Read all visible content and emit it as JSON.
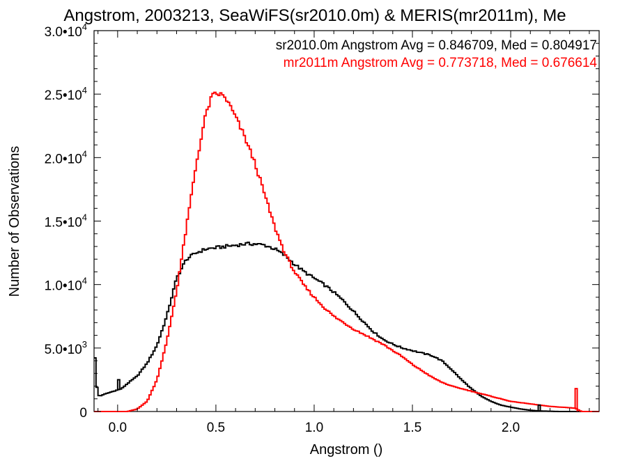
{
  "chart_data": {
    "type": "line",
    "title": "Angstrom, 2003213, SeaWiFS(sr2010.0m) & MERIS(mr2011m), Me",
    "xlabel": "Angstrom ()",
    "ylabel": "Number of Observations",
    "xlim": [
      -0.12,
      2.45
    ],
    "ylim": [
      0,
      30000
    ],
    "x_ticks": [
      {
        "value": 0.0,
        "label": "0.0"
      },
      {
        "value": 0.5,
        "label": "0.5"
      },
      {
        "value": 1.0,
        "label": "1.0"
      },
      {
        "value": 1.5,
        "label": "1.5"
      },
      {
        "value": 2.0,
        "label": "2.0"
      }
    ],
    "y_ticks": [
      {
        "value": 0,
        "mant": "0",
        "exp": ""
      },
      {
        "value": 5000,
        "mant": "5.0•10",
        "exp": "3"
      },
      {
        "value": 10000,
        "mant": "1.0•10",
        "exp": "4"
      },
      {
        "value": 15000,
        "mant": "1.5•10",
        "exp": "4"
      },
      {
        "value": 20000,
        "mant": "2.0•10",
        "exp": "4"
      },
      {
        "value": 25000,
        "mant": "2.5•10",
        "exp": "4"
      },
      {
        "value": 30000,
        "mant": "3.0•10",
        "exp": "4"
      }
    ],
    "grid": false,
    "legend_position": "top-right",
    "series": [
      {
        "name": "sr2010.0m Angstrom Avg = 0.846709, Med = 0.804917",
        "color": "#000000",
        "x": [
          -0.12,
          -0.11,
          -0.1,
          -0.09,
          -0.08,
          -0.06,
          -0.04,
          -0.02,
          0.0,
          0.02,
          0.05,
          0.1,
          0.15,
          0.2,
          0.25,
          0.3,
          0.35,
          0.4,
          0.45,
          0.5,
          0.55,
          0.6,
          0.65,
          0.7,
          0.75,
          0.8,
          0.85,
          0.9,
          0.95,
          1.0,
          1.05,
          1.1,
          1.15,
          1.2,
          1.25,
          1.3,
          1.35,
          1.4,
          1.45,
          1.5,
          1.55,
          1.6,
          1.65,
          1.7,
          1.75,
          1.8,
          1.85,
          1.9,
          1.95,
          2.0,
          2.05,
          2.1,
          2.14,
          2.2,
          2.25
        ],
        "y": [
          6000,
          2500,
          1300,
          1200,
          1300,
          1400,
          1500,
          1600,
          1700,
          1800,
          2200,
          2800,
          3800,
          5200,
          7500,
          10500,
          12000,
          12500,
          12800,
          12900,
          13000,
          13100,
          13200,
          13200,
          13100,
          12800,
          12300,
          11600,
          11000,
          10500,
          10000,
          9400,
          8700,
          7900,
          7100,
          6300,
          5700,
          5300,
          5000,
          4800,
          4600,
          4400,
          4000,
          3300,
          2500,
          1800,
          1200,
          800,
          500,
          350,
          200,
          100,
          50,
          20,
          0
        ]
      },
      {
        "name": "mr2011m Angstrom Avg = 0.773718, Med = 0.676614",
        "color": "#ff0000",
        "x": [
          -0.12,
          0.05,
          0.1,
          0.15,
          0.2,
          0.25,
          0.3,
          0.35,
          0.4,
          0.45,
          0.48,
          0.5,
          0.52,
          0.55,
          0.6,
          0.65,
          0.7,
          0.75,
          0.8,
          0.85,
          0.9,
          0.95,
          1.0,
          1.05,
          1.1,
          1.15,
          1.2,
          1.25,
          1.3,
          1.35,
          1.4,
          1.45,
          1.5,
          1.55,
          1.6,
          1.65,
          1.7,
          1.8,
          1.9,
          2.0,
          2.1,
          2.2,
          2.3,
          2.33,
          2.36,
          2.45
        ],
        "y": [
          0,
          0,
          200,
          800,
          2500,
          5500,
          9500,
          14500,
          19500,
          23500,
          24800,
          25000,
          25000,
          24700,
          23200,
          21500,
          19500,
          17000,
          14500,
          12500,
          11000,
          9900,
          9000,
          8200,
          7500,
          7000,
          6500,
          6100,
          5700,
          5300,
          4800,
          4300,
          3700,
          3200,
          2700,
          2300,
          2000,
          1600,
          1200,
          800,
          600,
          400,
          300,
          250,
          0,
          0
        ]
      }
    ],
    "annotations": [
      {
        "near_x": 0.0,
        "note": "small spike at x=0 in black series, ~2500"
      },
      {
        "near_x": 2.35,
        "note": "spike in red series, ~1800"
      }
    ]
  }
}
